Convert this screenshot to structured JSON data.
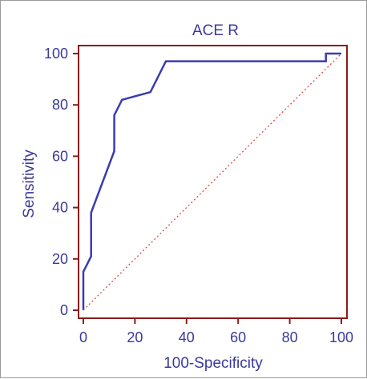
{
  "chart_data": {
    "type": "line",
    "title": "ACE R",
    "xlabel": "100-Specificity",
    "ylabel": "Sensitivity",
    "xlim": [
      0,
      100
    ],
    "ylim": [
      0,
      100
    ],
    "xticks": [
      "0",
      "20",
      "40",
      "60",
      "80",
      "100"
    ],
    "yticks": [
      "0",
      "20",
      "40",
      "60",
      "80",
      "100"
    ],
    "grid": false,
    "series": [
      {
        "style": "solid",
        "color": "#3b3bb0",
        "points": [
          [
            0,
            0
          ],
          [
            0,
            15
          ],
          [
            3,
            21
          ],
          [
            3,
            38
          ],
          [
            12,
            62
          ],
          [
            12,
            76
          ],
          [
            15,
            82
          ],
          [
            26,
            85
          ],
          [
            32,
            97
          ],
          [
            94,
            97
          ],
          [
            94,
            100
          ],
          [
            100,
            100
          ]
        ]
      },
      {
        "style": "dotted",
        "color": "#e04848",
        "points": [
          [
            0,
            0
          ],
          [
            100,
            100
          ]
        ]
      }
    ],
    "colors": {
      "plot_border": "#8b1a1a",
      "text": "#3a3a9a",
      "roc_line": "#3b3bb0",
      "reference_line": "#e04848"
    }
  }
}
